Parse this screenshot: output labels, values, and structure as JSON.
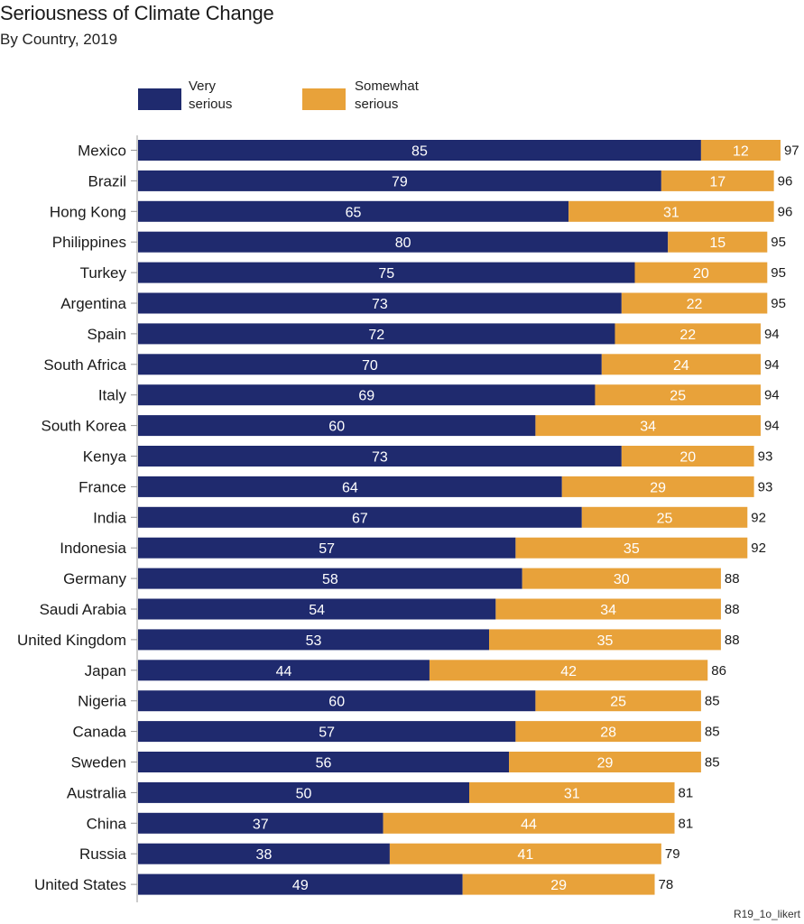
{
  "title": "Seriousness of Climate Change",
  "subtitle": "By Country, 2019",
  "source_note": "R19_1o_likert",
  "legend": [
    {
      "label": "Very\nserious",
      "color": "#1f2a6e"
    },
    {
      "label": "Somewhat\nserious",
      "color": "#e8a23a"
    }
  ],
  "chart_data": {
    "type": "bar",
    "orientation": "horizontal",
    "stacked": true,
    "xlim": [
      0,
      100
    ],
    "grid": false,
    "legend_position": "top",
    "categories": [
      "Mexico",
      "Brazil",
      "Hong Kong",
      "Philippines",
      "Turkey",
      "Argentina",
      "Spain",
      "South Africa",
      "Italy",
      "South Korea",
      "Kenya",
      "France",
      "India",
      "Indonesia",
      "Germany",
      "Saudi Arabia",
      "United Kingdom",
      "Japan",
      "Nigeria",
      "Canada",
      "Sweden",
      "Australia",
      "China",
      "Russia",
      "United States"
    ],
    "series": [
      {
        "name": "Very serious",
        "color": "#1f2a6e",
        "values": [
          85,
          79,
          65,
          80,
          75,
          73,
          72,
          70,
          69,
          60,
          73,
          64,
          67,
          57,
          58,
          54,
          53,
          44,
          60,
          57,
          56,
          50,
          37,
          38,
          49
        ]
      },
      {
        "name": "Somewhat serious",
        "color": "#e8a23a",
        "values": [
          12,
          17,
          31,
          15,
          20,
          22,
          22,
          24,
          25,
          34,
          20,
          29,
          25,
          35,
          30,
          34,
          35,
          42,
          25,
          28,
          29,
          31,
          44,
          41,
          29
        ]
      }
    ],
    "totals": [
      97,
      96,
      96,
      95,
      95,
      95,
      94,
      94,
      94,
      94,
      93,
      93,
      92,
      92,
      88,
      88,
      88,
      86,
      85,
      85,
      85,
      81,
      81,
      79,
      78
    ]
  }
}
